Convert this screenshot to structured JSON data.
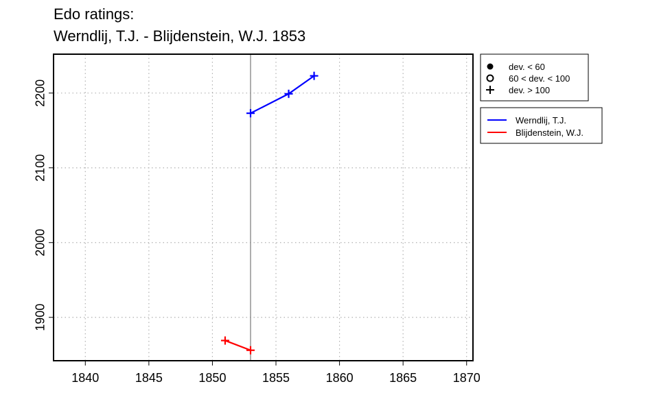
{
  "chart_data": {
    "type": "line",
    "title": [
      "Edo ratings:",
      "Werndlij, T.J. - Blijdenstein, W.J. 1853"
    ],
    "xlabel": "",
    "ylabel": "",
    "xlim": [
      1837.5,
      1870.5
    ],
    "ylim": [
      1842,
      2252
    ],
    "x_ticks": [
      1840,
      1845,
      1850,
      1855,
      1860,
      1865,
      1870
    ],
    "y_ticks": [
      1900,
      2000,
      2100,
      2200
    ],
    "grid": true,
    "vline_x": 1853,
    "series": [
      {
        "name": "Werndlij, T.J.",
        "color": "#0000ff",
        "x": [
          1853,
          1856,
          1858
        ],
        "y": [
          2173,
          2199,
          2223
        ],
        "marker": "plus"
      },
      {
        "name": "Blijdenstein, W.J.",
        "color": "#ff0000",
        "x": [
          1851,
          1853
        ],
        "y": [
          1869,
          1856
        ],
        "marker": "plus"
      }
    ],
    "marker_legend": [
      {
        "symbol": "filled-circle",
        "label": "dev. < 60"
      },
      {
        "symbol": "open-circle",
        "label": "60 < dev. < 100"
      },
      {
        "symbol": "plus",
        "label": "dev. > 100"
      }
    ],
    "legend_position": "top-right-outside"
  }
}
